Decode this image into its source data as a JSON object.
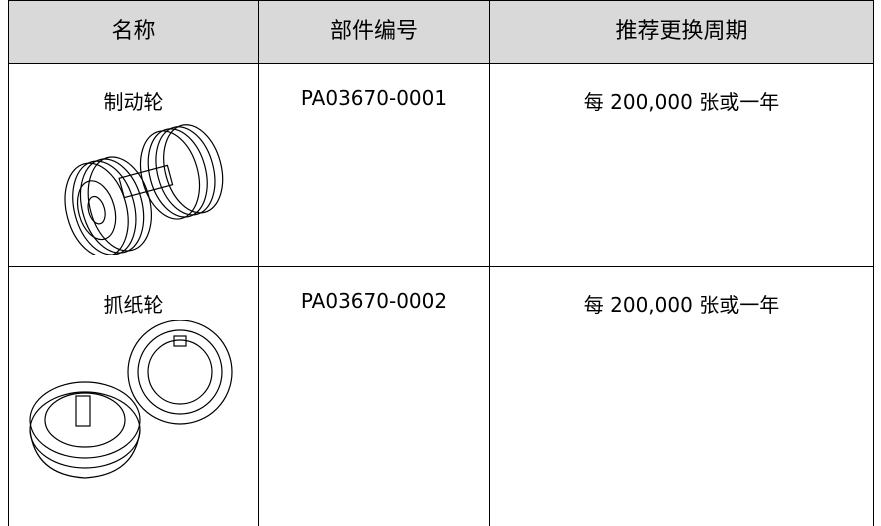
{
  "table": {
    "header": [
      "名称",
      "部件编号",
      "推荐更换周期"
    ],
    "rows": [
      [
        "制动轮",
        "PA03670-0001",
        "每 200,000 张或一年"
      ],
      [
        "抓纸轮",
        "PA03670-0002",
        "每 200,000 张或一年"
      ]
    ]
  }
}
